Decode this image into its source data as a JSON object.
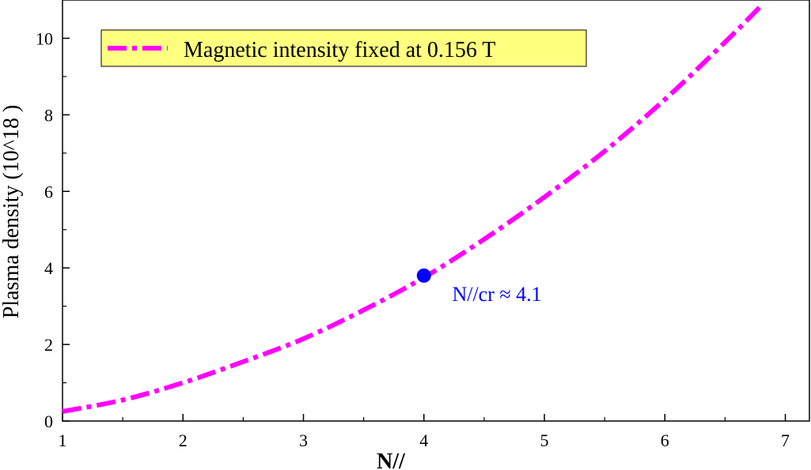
{
  "chart_data": {
    "type": "line",
    "xlabel": "N//",
    "ylabel": "Plasma density (10^18 )",
    "xlim": [
      1,
      7.2
    ],
    "ylim": [
      0,
      11
    ],
    "xticks": [
      1,
      2,
      3,
      4,
      5,
      6,
      7
    ],
    "yticks": [
      0,
      2,
      4,
      6,
      8,
      10
    ],
    "grid": false,
    "legend_position": "top-left",
    "series": [
      {
        "name": "Magnetic intensity fixed at  0.156 T",
        "color": "#ff00ff",
        "line_style": "dash-dot",
        "x": [
          1.0,
          1.5,
          2.0,
          2.5,
          3.0,
          3.5,
          4.0,
          4.5,
          5.0,
          5.5,
          6.0,
          6.5,
          6.8
        ],
        "y": [
          0.25,
          0.55,
          1.0,
          1.55,
          2.15,
          2.9,
          3.75,
          4.75,
          5.85,
          7.05,
          8.4,
          9.9,
          10.85
        ]
      }
    ],
    "annotations": [
      {
        "type": "point",
        "x": 4.0,
        "y": 3.8,
        "color": "#0000ff"
      },
      {
        "type": "text",
        "text": "N//cr ≈ 4.1",
        "x": 4.3,
        "y": 3.55,
        "color": "#0000ff"
      }
    ]
  }
}
